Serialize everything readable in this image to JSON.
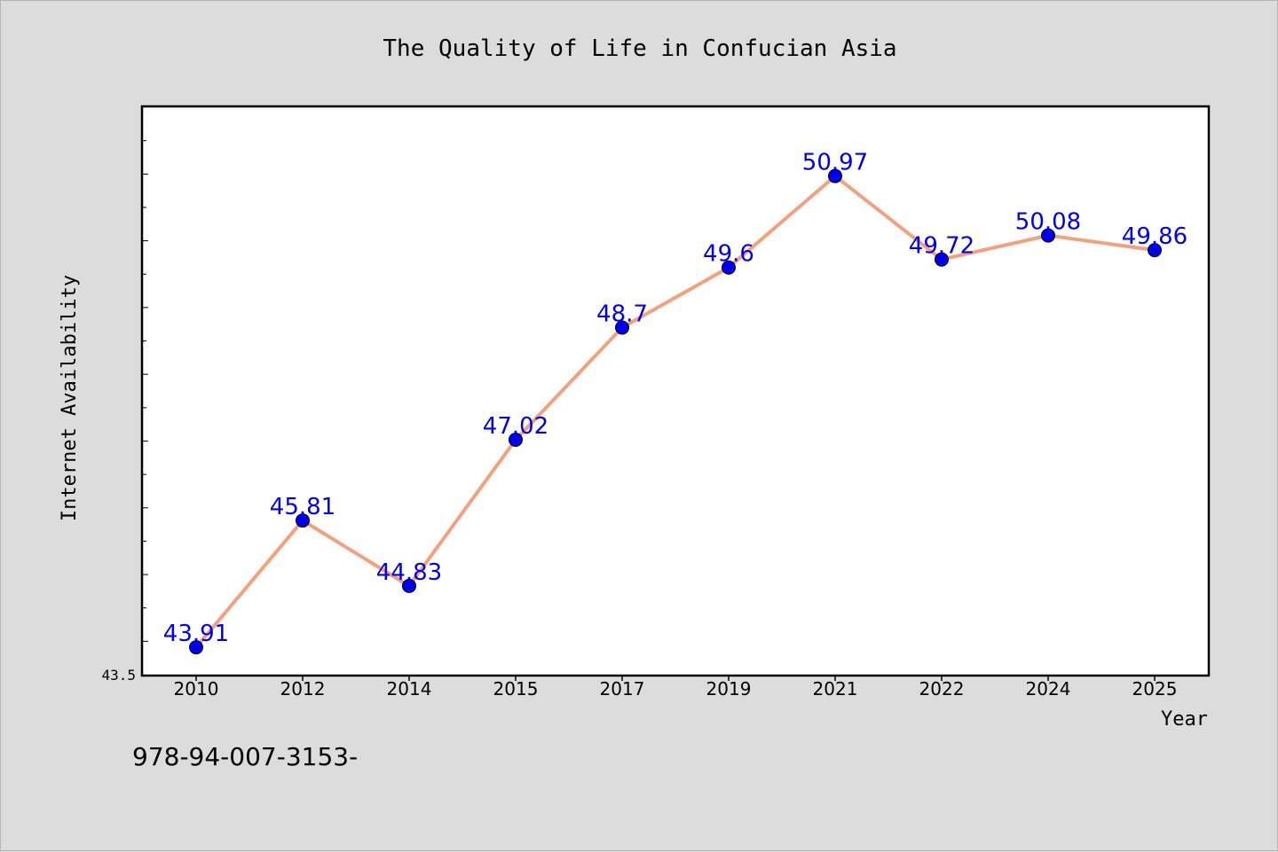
{
  "chart_data": {
    "type": "line",
    "title": "The Quality of Life in Confucian Asia",
    "xlabel": "Year",
    "ylabel": "Internet Availability",
    "categories": [
      "2010",
      "2012",
      "2014",
      "2015",
      "2017",
      "2019",
      "2021",
      "2022",
      "2024",
      "2025"
    ],
    "series": [
      {
        "values": [
          43.91,
          45.81,
          44.83,
          47.02,
          48.7,
          49.6,
          50.97,
          49.72,
          50.08,
          49.86
        ],
        "value_labels": [
          "43.91",
          "45.81",
          "44.83",
          "47.02",
          "48.7",
          "49.6",
          "50.97",
          "49.72",
          "50.08",
          "49.86"
        ]
      }
    ],
    "ylim": [
      43.5,
      52.0
    ],
    "y_tick_label": "43.5",
    "grid": false,
    "legend": "none",
    "colors": {
      "line": "#f4a07c",
      "marker": "#0000ee",
      "value_label": "#0000ee",
      "background": "#dcdcdc",
      "plot_background": "#ffffff"
    }
  },
  "footer": {
    "isbn_text": "978-94-007-3153-"
  }
}
